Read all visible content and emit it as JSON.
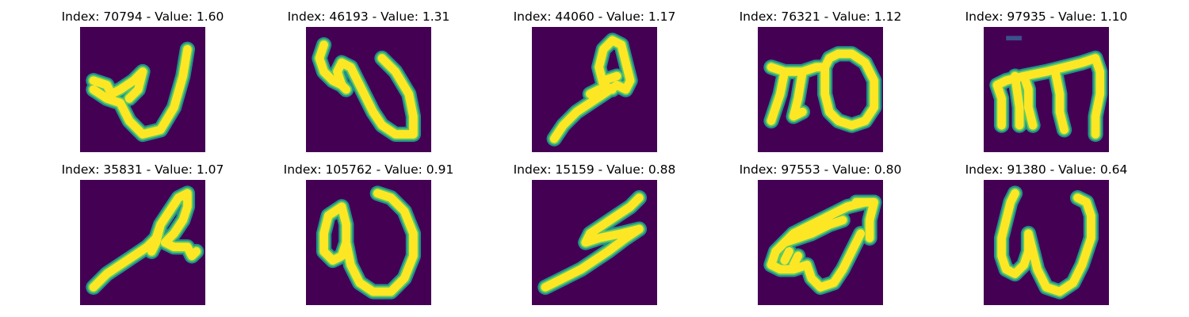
{
  "colors": {
    "background": "#440154",
    "halo": "#21918c",
    "mid": "#5ec962",
    "stroke": "#fde725"
  },
  "panels": [
    {
      "title": "Index: 70794 - Value: 1.60",
      "index": 70794,
      "value": 1.6
    },
    {
      "title": "Index: 46193 - Value: 1.31",
      "index": 46193,
      "value": 1.31
    },
    {
      "title": "Index: 44060 - Value: 1.17",
      "index": 44060,
      "value": 1.17
    },
    {
      "title": "Index: 76321 - Value: 1.12",
      "index": 76321,
      "value": 1.12
    },
    {
      "title": "Index: 97935 - Value: 1.10",
      "index": 97935,
      "value": 1.1
    },
    {
      "title": "Index: 35831 - Value: 1.07",
      "index": 35831,
      "value": 1.07
    },
    {
      "title": "Index: 105762 - Value: 0.91",
      "index": 105762,
      "value": 0.91
    },
    {
      "title": "Index: 15159 - Value: 0.88",
      "index": 15159,
      "value": 0.88
    },
    {
      "title": "Index: 97553 - Value: 0.80",
      "index": 97553,
      "value": 0.8
    },
    {
      "title": "Index: 91380 - Value: 0.64",
      "index": 91380,
      "value": 0.64
    }
  ]
}
